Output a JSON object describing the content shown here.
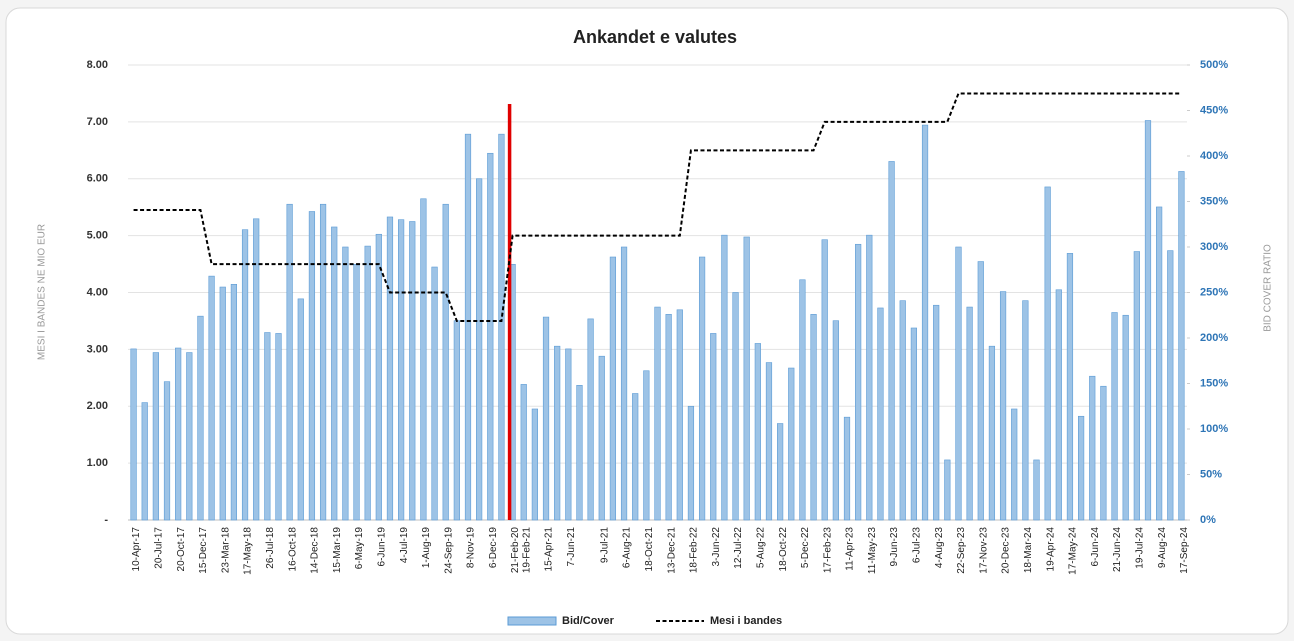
{
  "chart_data": {
    "type": "bar",
    "title": "Ankandet e valutes",
    "y_label": "MESI I BANDES NE MIO EUR",
    "y2_label": "BID COVER RATIO",
    "categories": [
      "10-Apr-17",
      null,
      "20-Jul-17",
      null,
      "20-Oct-17",
      null,
      "15-Dec-17",
      null,
      "23-Mar-18",
      null,
      "17-May-18",
      null,
      "26-Jul-18",
      null,
      "16-Oct-18",
      null,
      "14-Dec-18",
      null,
      "15-Mar-19",
      null,
      "6-May-19",
      null,
      "6-Jun-19",
      null,
      "4-Jul-19",
      null,
      "1-Aug-19",
      null,
      "24-Sep-19",
      null,
      "8-Nov-19",
      null,
      "6-Dec-19",
      null,
      "21-Feb-20",
      "19-Feb-21",
      null,
      "15-Apr-21",
      null,
      "7-Jun-21",
      null,
      null,
      "9-Jul-21",
      null,
      "6-Aug-21",
      null,
      "18-Oct-21",
      null,
      "13-Dec-21",
      null,
      "18-Feb-22",
      null,
      "3-Jun-22",
      null,
      "12-Jul-22",
      null,
      "5-Aug-22",
      null,
      "18-Oct-22",
      null,
      "5-Dec-22",
      null,
      "17-Feb-23",
      null,
      "11-Apr-23",
      null,
      "11-May-23",
      null,
      "9-Jun-23",
      null,
      "6-Jul-23",
      null,
      "4-Aug-23",
      null,
      "22-Sep-23",
      null,
      "17-Nov-23",
      null,
      "20-Dec-23",
      null,
      "18-Mar-24",
      null,
      "19-Apr-24",
      null,
      "17-May-24",
      null,
      "6-Jun-24",
      null,
      "21-Jun-24",
      null,
      "19-Jul-24",
      null,
      "9-Aug-24",
      null,
      "17-Sep-24"
    ],
    "series": [
      {
        "name": "Bid/Cover",
        "type": "bar",
        "axis": "y2",
        "color": "#9dc3e6",
        "edge_color": "#5b9bd5",
        "values": [
          188,
          129,
          184,
          152,
          189,
          184,
          224,
          268,
          256,
          259,
          319,
          331,
          206,
          205,
          347,
          243,
          339,
          347,
          322,
          300,
          281,
          301,
          314,
          333,
          330,
          328,
          353,
          278,
          347,
          219,
          424,
          375,
          403,
          424,
          281,
          149,
          122,
          223,
          191,
          188,
          148,
          221,
          180,
          289,
          300,
          139,
          164,
          234,
          226,
          231,
          125,
          289,
          205,
          313,
          250,
          311,
          194,
          173,
          106,
          167,
          264,
          226,
          308,
          219,
          113,
          303,
          313,
          233,
          394,
          241,
          211,
          434,
          236,
          66,
          300,
          234,
          284,
          191,
          251,
          122,
          241,
          66,
          366,
          253,
          293,
          114,
          158,
          147,
          228,
          225,
          295,
          439,
          344,
          296,
          383
        ]
      },
      {
        "name": "Mesi i bandes",
        "type": "line",
        "axis": "y",
        "color": "#000000",
        "line_style": "dashed",
        "values": [
          5.45,
          5.45,
          5.45,
          5.45,
          5.45,
          5.45,
          5.45,
          4.5,
          4.5,
          4.5,
          4.5,
          4.5,
          4.5,
          4.5,
          4.5,
          4.5,
          4.5,
          4.5,
          4.5,
          4.5,
          4.5,
          4.5,
          4.5,
          4,
          4,
          4,
          4,
          4,
          4,
          3.5,
          3.5,
          3.5,
          3.5,
          3.5,
          5,
          5,
          5,
          5,
          5,
          5,
          5,
          5,
          5,
          5,
          5,
          5,
          5,
          5,
          5,
          5,
          6.5,
          6.5,
          6.5,
          6.5,
          6.5,
          6.5,
          6.5,
          6.5,
          6.5,
          6.5,
          6.5,
          6.5,
          7,
          7,
          7,
          7,
          7,
          7,
          7,
          7,
          7,
          7,
          7,
          7,
          7.5,
          7.5,
          7.5,
          7.5,
          7.5,
          7.5,
          7.5,
          7.5,
          7.5,
          7.5,
          7.5,
          7.5,
          7.5,
          7.5,
          7.5,
          7.5,
          7.5,
          7.5,
          7.5,
          7.5,
          7.5
        ]
      }
    ],
    "ylim": [
      0,
      8
    ],
    "yticks": [
      {
        "value": 0,
        "label": "-"
      },
      {
        "value": 1,
        "label": "1.00"
      },
      {
        "value": 2,
        "label": "2.00"
      },
      {
        "value": 3,
        "label": "3.00"
      },
      {
        "value": 4,
        "label": "4.00"
      },
      {
        "value": 5,
        "label": "5.00"
      },
      {
        "value": 6,
        "label": "6.00"
      },
      {
        "value": 7,
        "label": "7.00"
      },
      {
        "value": 8,
        "label": "8.00"
      }
    ],
    "y2lim": [
      0,
      500
    ],
    "y2ticks": [
      {
        "value": 0,
        "label": "0%"
      },
      {
        "value": 50,
        "label": "50%"
      },
      {
        "value": 100,
        "label": "100%"
      },
      {
        "value": 150,
        "label": "150%"
      },
      {
        "value": 200,
        "label": "200%"
      },
      {
        "value": 250,
        "label": "250%"
      },
      {
        "value": 300,
        "label": "300%"
      },
      {
        "value": 350,
        "label": "350%"
      },
      {
        "value": 400,
        "label": "400%"
      },
      {
        "value": 450,
        "label": "450%"
      },
      {
        "value": 500,
        "label": "500%"
      }
    ],
    "grid": true,
    "legend": "bottom"
  }
}
